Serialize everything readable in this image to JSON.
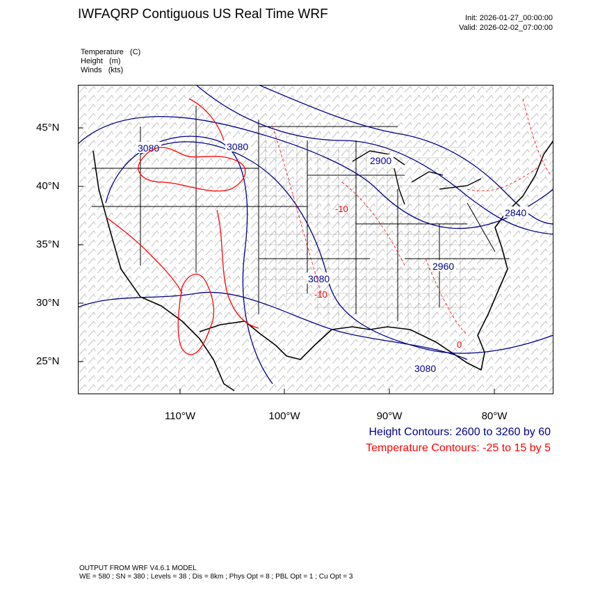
{
  "header": {
    "title": "IWFAQRP Contiguous US Real Time WRF",
    "init": "Init: 2026-01-27_00:00:00",
    "valid": "Valid: 2026-02-02_07:00:00"
  },
  "variables": [
    "Temperature   (C)",
    "Height   (m)",
    "Winds   (kts)"
  ],
  "map": {
    "lat_labels": [
      "45°N",
      "40°N",
      "35°N",
      "30°N",
      "25°N"
    ],
    "lon_labels": [
      "110°W",
      "100°W",
      "90°W",
      "80°W"
    ],
    "height_contour_labels": [
      "3080",
      "3080",
      "2900",
      "2840",
      "2960",
      "3080",
      "3080"
    ],
    "temp_contour_labels": [
      "-10",
      "-10",
      "0"
    ],
    "colors": {
      "height": "#00008b",
      "temperature": "#ff0000",
      "boundaries": "#000000"
    }
  },
  "legend": {
    "height": "Height Contours: 2600 to 3260 by 60",
    "temperature": "Temperature Contours: -25 to 15 by 5"
  },
  "footer": {
    "line1": "OUTPUT FROM WRF V4.6.1 MODEL",
    "line2": "WE = 580 ; SN = 380 ; Levels = 38 ; Dis = 8km ; Phys Opt = 8 ; PBL Opt = 1 ; Cu Opt = 3"
  }
}
